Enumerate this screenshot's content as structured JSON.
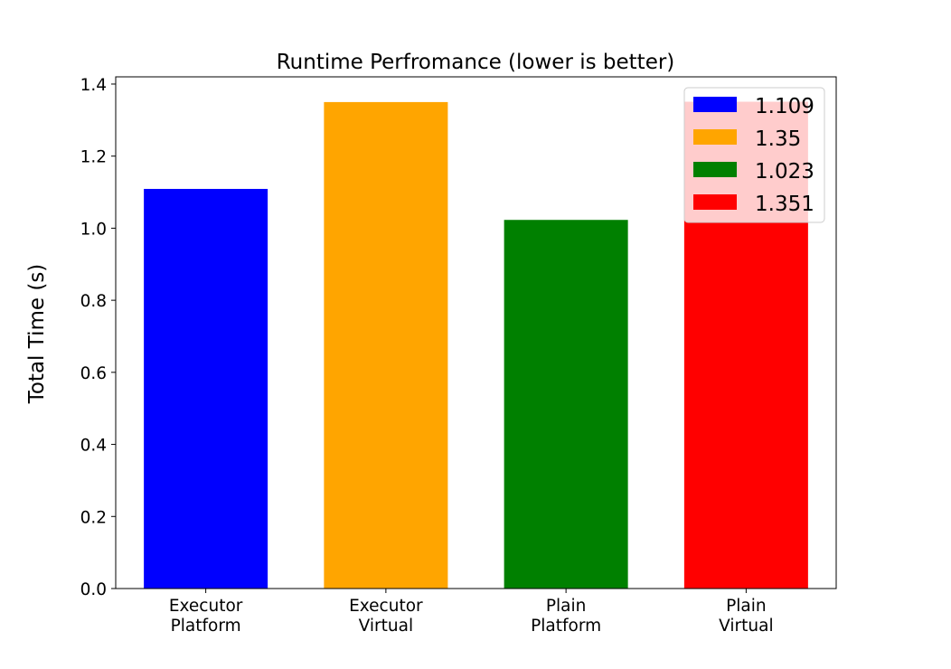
{
  "chart_data": {
    "type": "bar",
    "title": "Runtime Perfromance (lower is better)",
    "xlabel": "",
    "ylabel": "Total Time (s)",
    "ylim": [
      0,
      1.42
    ],
    "yticks": [
      0.0,
      0.2,
      0.4,
      0.6,
      0.8,
      1.0,
      1.2,
      1.4
    ],
    "ytick_labels": [
      "0.0",
      "0.2",
      "0.4",
      "0.6",
      "0.8",
      "1.0",
      "1.2",
      "1.4"
    ],
    "categories": [
      [
        "Executor",
        "Platform"
      ],
      [
        "Executor",
        "Virtual"
      ],
      [
        "Plain",
        "Platform"
      ],
      [
        "Plain",
        "Virtual"
      ]
    ],
    "values": [
      1.109,
      1.35,
      1.023,
      1.351
    ],
    "colors": [
      "#0000ff",
      "#ffa500",
      "#008000",
      "#ff0000"
    ],
    "legend": {
      "placement": "top-right",
      "entries": [
        "1.109",
        "1.35",
        "1.023",
        "1.351"
      ]
    },
    "grid": false
  }
}
